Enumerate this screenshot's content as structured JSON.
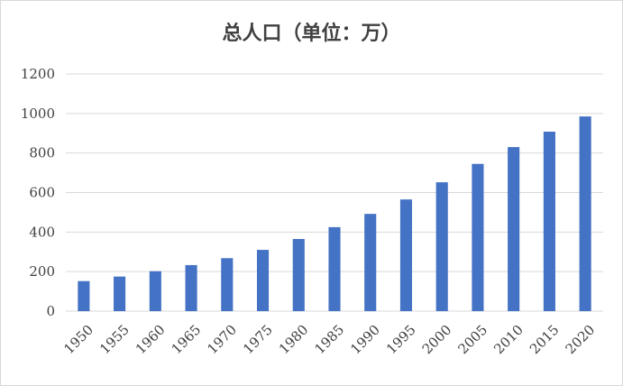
{
  "chart_data": {
    "type": "bar",
    "title": "总人口（单位：万）",
    "categories": [
      "1950",
      "1955",
      "1960",
      "1965",
      "1970",
      "1975",
      "1980",
      "1985",
      "1990",
      "1995",
      "2000",
      "2005",
      "2010",
      "2015",
      "2020"
    ],
    "values": [
      152,
      175,
      202,
      233,
      268,
      310,
      365,
      425,
      492,
      565,
      652,
      745,
      830,
      908,
      985
    ],
    "ylim": [
      0,
      1200
    ],
    "yticks": [
      0,
      200,
      400,
      600,
      800,
      1000,
      1200
    ],
    "grid": true,
    "legend": "none",
    "bar_color": "#4472C4",
    "grid_color": "#d9d9d9"
  }
}
